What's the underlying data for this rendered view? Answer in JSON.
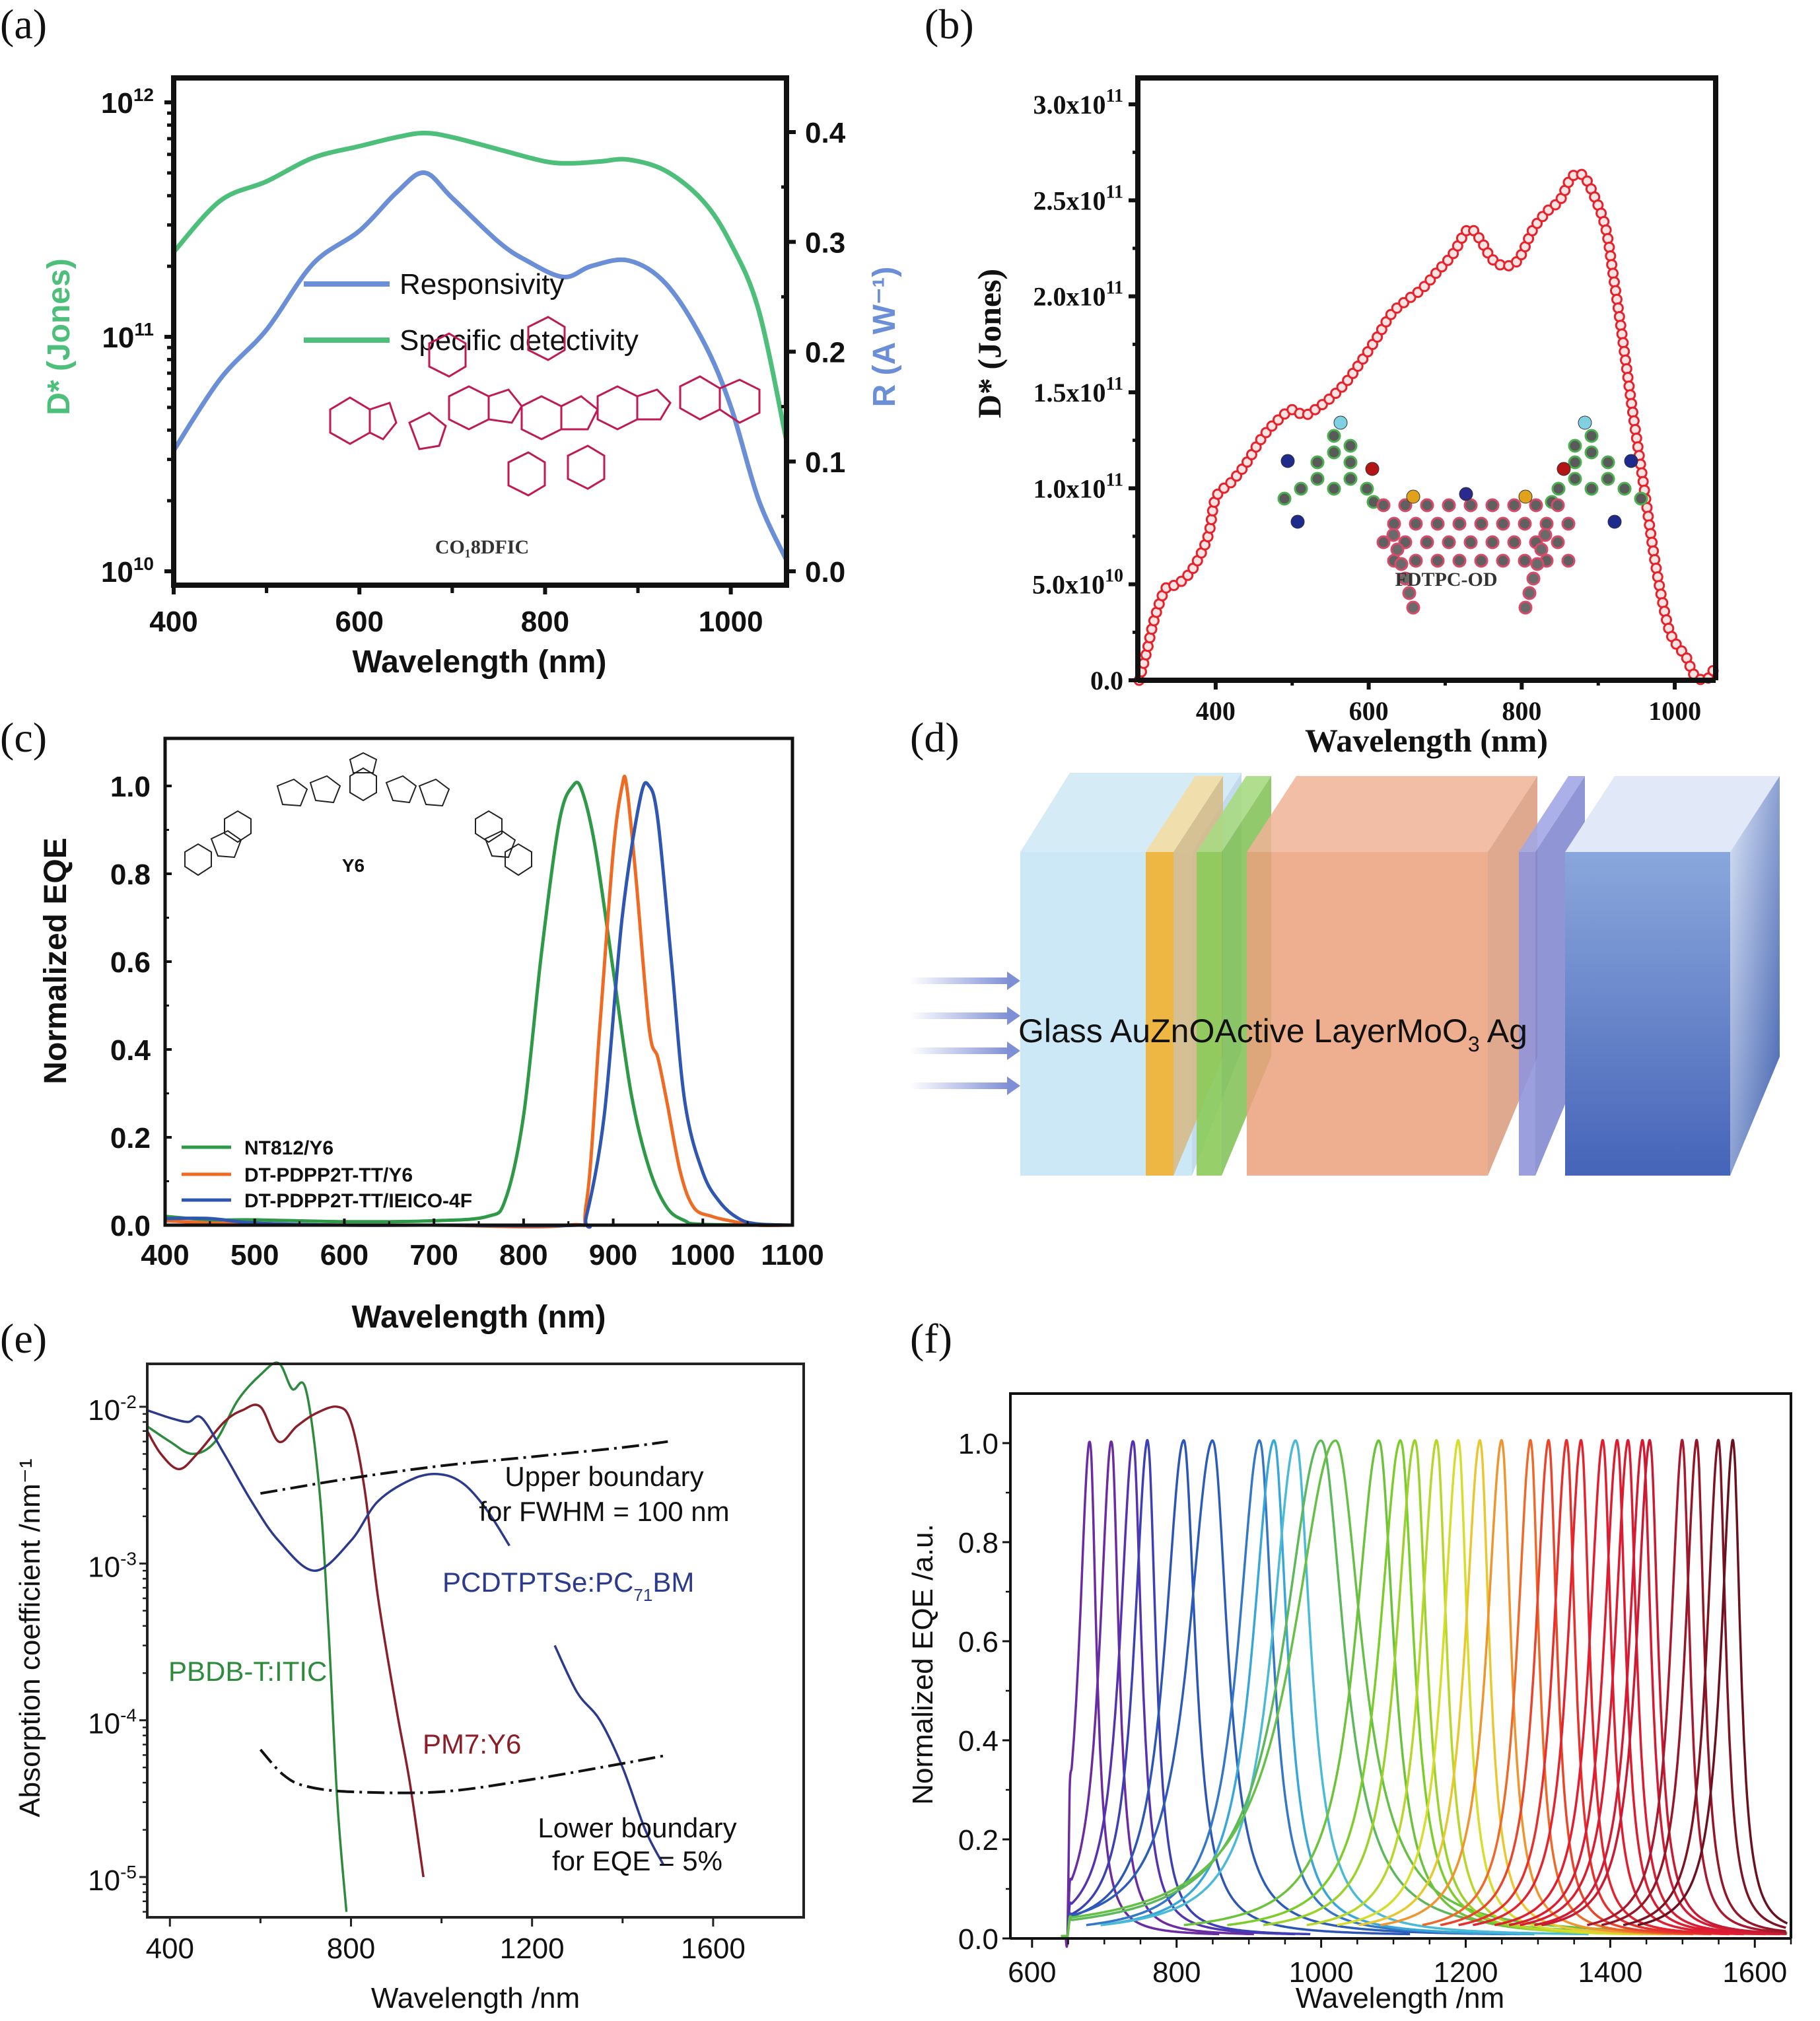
{
  "panels": {
    "a": {
      "label": "(a)"
    },
    "b": {
      "label": "(b)"
    },
    "c": {
      "label": "(c)"
    },
    "d": {
      "label": "(d)"
    },
    "e": {
      "label": "(e)"
    },
    "f": {
      "label": "(f)"
    }
  },
  "chart_data": [
    {
      "id": "a",
      "type": "line",
      "title": "",
      "xlabel": "Wavelength (nm)",
      "ylabel_left": "D* (Jones)",
      "ylabel_right": "R (A W⁻¹)",
      "xlim": [
        400,
        1060
      ],
      "ylim_left": [
        10000000000.0,
        1000000000000.0
      ],
      "ylim_left_scale": "log",
      "ylim_right": [
        0,
        0.4
      ],
      "xticks": [
        "400",
        "600",
        "800",
        "1000"
      ],
      "yticks_left": [
        "10^10",
        "10^11",
        "10^12"
      ],
      "yticks_right": [
        "0.0",
        "0.1",
        "0.2",
        "0.3",
        "0.4"
      ],
      "legend_position": "center",
      "inset_label": "CO₁8DFIC",
      "colors": {
        "responsivity": "#6b8fd6",
        "detectivity": "#4dbf7a",
        "molecule": "#c01a55"
      },
      "series": [
        {
          "name": "Responsivity",
          "axis": "right",
          "color": "#6b8fd6",
          "x": [
            400,
            450,
            500,
            550,
            600,
            640,
            670,
            700,
            750,
            780,
            820,
            850,
            890,
            930,
            970,
            1000,
            1030,
            1060
          ],
          "y": [
            0.11,
            0.175,
            0.22,
            0.28,
            0.31,
            0.345,
            0.363,
            0.34,
            0.3,
            0.283,
            0.268,
            0.278,
            0.283,
            0.262,
            0.21,
            0.15,
            0.065,
            0.01
          ]
        },
        {
          "name": "Specific detectivity",
          "axis": "left",
          "color": "#4dbf7a",
          "x": [
            400,
            450,
            500,
            550,
            600,
            640,
            670,
            700,
            750,
            800,
            830,
            860,
            890,
            930,
            970,
            1000,
            1030,
            1060
          ],
          "y": [
            230000000000.0,
            380000000000.0,
            460000000000.0,
            580000000000.0,
            650000000000.0,
            710000000000.0,
            740000000000.0,
            710000000000.0,
            630000000000.0,
            560000000000.0,
            550000000000.0,
            560000000000.0,
            570000000000.0,
            510000000000.0,
            380000000000.0,
            250000000000.0,
            130000000000.0,
            36000000000.0
          ]
        }
      ]
    },
    {
      "id": "b",
      "type": "line",
      "title": "",
      "xlabel": "Wavelength (nm)",
      "ylabel": "D* (Jones)",
      "xlim": [
        300,
        1050
      ],
      "ylim": [
        0,
        300000000000.0
      ],
      "xticks": [
        "400",
        "600",
        "800",
        "1000"
      ],
      "yticks": [
        "0.0",
        "5.0x10^10",
        "1.0x10^11",
        "1.5x10^11",
        "2.0x10^11",
        "2.5x10^11",
        "3.0x10^11"
      ],
      "inset_label": "FDTPC-OD",
      "colors": {
        "line": "#e8202a"
      },
      "series": [
        {
          "name": "FDTPC-OD",
          "color": "#e8202a",
          "x": [
            300,
            310,
            320,
            335,
            350,
            370,
            390,
            400,
            420,
            440,
            460,
            480,
            500,
            515,
            530,
            550,
            570,
            590,
            610,
            630,
            650,
            670,
            690,
            710,
            730,
            745,
            760,
            775,
            790,
            800,
            815,
            835,
            850,
            865,
            880,
            895,
            910,
            920,
            930,
            945,
            960,
            975,
            990,
            1000,
            1015,
            1025,
            1040,
            1050
          ],
          "y": [
            0.0,
            15000000000.0,
            32000000000.0,
            48000000000.0,
            50000000000.0,
            58000000000.0,
            75000000000.0,
            95000000000.0,
            103000000000.0,
            113000000000.0,
            126000000000.0,
            135000000000.0,
            141000000000.0,
            138000000000.0,
            141000000000.0,
            147000000000.0,
            155000000000.0,
            166000000000.0,
            178000000000.0,
            191000000000.0,
            198000000000.0,
            204000000000.0,
            213000000000.0,
            222000000000.0,
            235000000000.0,
            230000000000.0,
            220000000000.0,
            216000000000.0,
            217000000000.0,
            222000000000.0,
            235000000000.0,
            245000000000.0,
            250000000000.0,
            262000000000.0,
            263000000000.0,
            252000000000.0,
            235000000000.0,
            210000000000.0,
            183000000000.0,
            140000000000.0,
            100000000000.0,
            60000000000.0,
            30000000000.0,
            20000000000.0,
            12000000000.0,
            3000000000.0,
            0.0,
            5000000000.0
          ]
        }
      ]
    },
    {
      "id": "c",
      "type": "line",
      "title": "",
      "xlabel": "Wavelength (nm)",
      "ylabel": "Normalized EQE",
      "xlim": [
        400,
        1100
      ],
      "ylim": [
        0,
        1.05
      ],
      "xticks": [
        "400",
        "500",
        "600",
        "700",
        "800",
        "900",
        "1000",
        "1100"
      ],
      "yticks": [
        "0.0",
        "0.2",
        "0.4",
        "0.6",
        "0.8",
        "1.0"
      ],
      "legend_position": "bottom-left",
      "inset_label": "Y6",
      "series": [
        {
          "name": "NT812/Y6",
          "color": "#2e9a47",
          "x": [
            400,
            450,
            500,
            600,
            700,
            760,
            780,
            800,
            820,
            840,
            855,
            865,
            880,
            900,
            920,
            940,
            960,
            980,
            1000,
            1100
          ],
          "y": [
            0.02,
            0.012,
            0.012,
            0.008,
            0.01,
            0.02,
            0.06,
            0.25,
            0.62,
            0.92,
            1.0,
            0.99,
            0.86,
            0.58,
            0.3,
            0.13,
            0.04,
            0.01,
            0.002,
            0.0
          ]
        },
        {
          "name": "DT-PDPP2T-TT/Y6",
          "color": "#ef6a22",
          "x": [
            400,
            450,
            500,
            600,
            700,
            850,
            870,
            885,
            900,
            910,
            915,
            925,
            940,
            950,
            960,
            975,
            990,
            1010,
            1030,
            1060,
            1100
          ],
          "y": [
            0.01,
            0.005,
            0.003,
            0.0,
            0.0,
            0.0,
            0.05,
            0.45,
            0.85,
            1.0,
            1.0,
            0.8,
            0.45,
            0.38,
            0.28,
            0.12,
            0.04,
            0.02,
            0.01,
            0.0,
            0.0
          ]
        },
        {
          "name": "DT-PDPP2T-TT/IEICO-4F",
          "color": "#2f56b0",
          "x": [
            400,
            450,
            500,
            600,
            700,
            860,
            870,
            890,
            910,
            930,
            940,
            950,
            965,
            980,
            1000,
            1020,
            1040,
            1060,
            1100
          ],
          "y": [
            0.015,
            0.015,
            0.005,
            0.0,
            0.0,
            0.0,
            0.02,
            0.25,
            0.7,
            0.97,
            1.0,
            0.92,
            0.6,
            0.28,
            0.12,
            0.05,
            0.015,
            0.003,
            0.0
          ]
        }
      ]
    },
    {
      "id": "e",
      "type": "line",
      "title": "",
      "xlabel": "Wavelength /nm",
      "ylabel": "Absorption coefficient /nm⁻¹",
      "xlim": [
        350,
        1800
      ],
      "ylim": [
        5e-06,
        0.05
      ],
      "yscale": "log",
      "xticks": [
        "400",
        "800",
        "1200",
        "1600"
      ],
      "yticks": [
        "10^-5",
        "10^-4",
        "10^-3",
        "10^-2"
      ],
      "annotations": [
        "Upper boundary",
        "for FWHM = 100 nm",
        "Lower boundary",
        "for EQE = 5%"
      ],
      "series": [
        {
          "name": "PBDB-T:ITIC",
          "color": "#2e8b3e",
          "x": [
            350,
            400,
            450,
            500,
            550,
            600,
            640,
            670,
            700,
            730,
            750,
            770,
            790
          ],
          "y": [
            0.0075,
            0.006,
            0.005,
            0.006,
            0.011,
            0.016,
            0.019,
            0.013,
            0.013,
            0.003,
            0.0004,
            3e-05,
            6e-06
          ]
        },
        {
          "name": "PM7:Y6",
          "color": "#8a1f2a",
          "x": [
            350,
            380,
            420,
            460,
            520,
            560,
            600,
            640,
            680,
            720,
            770,
            800,
            830,
            860,
            900,
            930,
            960
          ],
          "y": [
            0.007,
            0.005,
            0.004,
            0.005,
            0.008,
            0.0095,
            0.01,
            0.006,
            0.0075,
            0.009,
            0.01,
            0.008,
            0.003,
            0.0006,
            0.00012,
            4e-05,
            1e-05
          ]
        },
        {
          "name": "PCDTPTSe:PC₇₁BM",
          "color": "#2b3a8c",
          "x": [
            350,
            400,
            440,
            470,
            520,
            580,
            640,
            720,
            800,
            860,
            940,
            1000,
            1050,
            1100,
            1150,
            1200,
            1250,
            1300,
            1350,
            1400,
            1450,
            1490
          ],
          "y": [
            0.0095,
            0.0085,
            0.008,
            0.0085,
            0.005,
            0.0025,
            0.0014,
            0.0009,
            0.0014,
            0.0025,
            0.0035,
            0.0037,
            0.0032,
            0.0022,
            0.0013,
            0.0006,
            0.0003,
            0.00015,
            0.0001,
            5e-05,
            2e-05,
            1.2e-05
          ]
        },
        {
          "name": "Upper boundary for FWHM = 100 nm",
          "color": "#111111",
          "dash": "dash-dot",
          "x": [
            600,
            800,
            1000,
            1200,
            1400,
            1500
          ],
          "y": [
            0.0028,
            0.0035,
            0.0042,
            0.0048,
            0.0055,
            0.006
          ]
        },
        {
          "name": "Lower boundary for EQE = 5%",
          "color": "#111111",
          "dash": "dash-dot",
          "x": [
            600,
            650,
            700,
            800,
            1000,
            1200,
            1400,
            1500
          ],
          "y": [
            6.5e-05,
            4.5e-05,
            3.8e-05,
            3.5e-05,
            3.5e-05,
            4.2e-05,
            5.3e-05,
            6e-05
          ]
        }
      ]
    },
    {
      "id": "f",
      "type": "line",
      "title": "",
      "xlabel": "Wavelength /nm",
      "ylabel": "Normalized EQE /a.u.",
      "xlim": [
        570,
        1650
      ],
      "ylim": [
        0,
        1.1
      ],
      "xticks": [
        "600",
        "800",
        "1000",
        "1200",
        "1400",
        "1600"
      ],
      "yticks": [
        "0.0",
        "0.2",
        "0.4",
        "0.6",
        "0.8",
        "1.0"
      ],
      "peaks": [
        680,
        710,
        740,
        760,
        810,
        850,
        915,
        935,
        965,
        1000,
        1020,
        1080,
        1110,
        1130,
        1160,
        1190,
        1220,
        1250,
        1290,
        1315,
        1340,
        1360,
        1390,
        1410,
        1425,
        1445,
        1455,
        1500,
        1520,
        1550,
        1570
      ],
      "peak_widths_nm": [
        20,
        22,
        25,
        25,
        35,
        45,
        40,
        40,
        45,
        70,
        80,
        45,
        40,
        35,
        30,
        28,
        28,
        28,
        25,
        25,
        25,
        25,
        25,
        25,
        25,
        25,
        25,
        22,
        22,
        22,
        22
      ],
      "colors": [
        "#6a2ca0",
        "#6a2ca0",
        "#5533b0",
        "#3d3fb5",
        "#2c55b5",
        "#2c5cb8",
        "#3377c6",
        "#39a6d8",
        "#4bbad5",
        "#5cb85a",
        "#66c045",
        "#6cc23a",
        "#7ccc2c",
        "#9ad12a",
        "#b7d72a",
        "#d6dd2c",
        "#e8c830",
        "#ef9530",
        "#ee6a2b",
        "#e8452b",
        "#e5302c",
        "#e2242e",
        "#df1e30",
        "#dc1c31",
        "#d91c32",
        "#d31b33",
        "#c81b33",
        "#a8182e",
        "#941628",
        "#7e1323",
        "#6a101e"
      ]
    }
  ],
  "diagram_d": {
    "layers": [
      "Glass",
      "Au",
      "ZnO",
      "Active Layer",
      "MoO₃",
      "Ag"
    ],
    "label_text": "Glass AuZnOActive LayerMoO",
    "label_sub": "3",
    "label_tail": " Ag",
    "colors": {
      "glass": "#cde8f5",
      "au": "#f1b940",
      "zno": "#8ccb5a",
      "active": "#eea887",
      "moo3": "#8a8fdb",
      "ag": "#5c7fc8",
      "arrow": "#8a9ad8"
    },
    "arrow_count": 4
  }
}
